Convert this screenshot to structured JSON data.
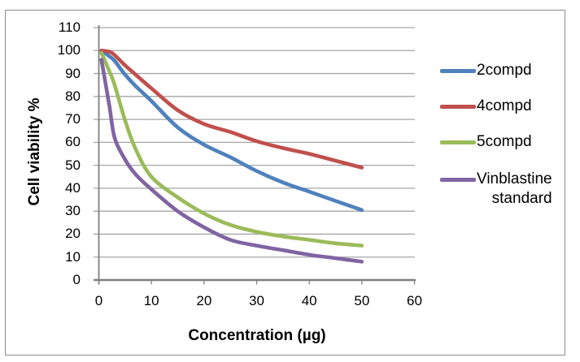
{
  "chart_data": {
    "type": "line",
    "title": "",
    "xlabel": "Concentration (µg)",
    "ylabel": "Cell viability %",
    "xlim": [
      0,
      60
    ],
    "ylim": [
      0,
      110
    ],
    "xticks": [
      0,
      10,
      20,
      30,
      40,
      50,
      60
    ],
    "yticks": [
      0,
      10,
      20,
      30,
      40,
      50,
      60,
      70,
      80,
      90,
      100,
      110
    ],
    "grid": true,
    "legend_position": "right",
    "x": [
      0.5,
      2,
      3,
      5,
      7,
      10,
      15,
      20,
      25,
      30,
      35,
      40,
      45,
      50
    ],
    "series": [
      {
        "name": "2compd",
        "legend_lines": [
          "2compd"
        ],
        "color": "#4F81BD",
        "values": [
          100,
          97.5,
          95.5,
          89.5,
          84.5,
          78,
          66.5,
          59,
          53.5,
          47.5,
          42.5,
          38.5,
          34.5,
          30.5
        ]
      },
      {
        "name": "4compd",
        "legend_lines": [
          "4compd"
        ],
        "color": "#C0504D",
        "values": [
          100,
          99.5,
          98,
          93.5,
          89.5,
          83.5,
          74,
          68,
          64.5,
          60.5,
          57.5,
          55,
          52,
          49
        ]
      },
      {
        "name": "5compd",
        "legend_lines": [
          "5compd"
        ],
        "color": "#9BBB59",
        "values": [
          99,
          91,
          85,
          69.5,
          57,
          45,
          36,
          29,
          24,
          21,
          19,
          17.5,
          16,
          15
        ]
      },
      {
        "name": "Vinblastine standard",
        "legend_lines": [
          "Vinblastine",
          "standard"
        ],
        "color": "#8064A2",
        "values": [
          96,
          76,
          62,
          52.5,
          46,
          39.5,
          30,
          23,
          17.5,
          15,
          13,
          11,
          9.5,
          8
        ]
      }
    ]
  },
  "colors": {
    "grid": "#A6A6A6",
    "y_axis": "#808080",
    "x_axis": "#7F7F7F",
    "tick": "#808080",
    "text": "#000000",
    "frame_border": "#8C8C8C",
    "background": "#FFFFFF"
  }
}
